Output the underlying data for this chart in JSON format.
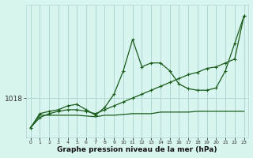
{
  "title": "Graphe pression niveau de la mer (hPa)",
  "bg_color": "#d8f5f0",
  "line_color": "#1a5c1a",
  "grid_color": "#b0d8d0",
  "xlim": [
    -0.5,
    23.5
  ],
  "ylim": [
    1013.0,
    1030.0
  ],
  "ytick_val": 1018,
  "hours": [
    0,
    1,
    2,
    3,
    4,
    5,
    6,
    7,
    8,
    9,
    10,
    11,
    12,
    13,
    14,
    15,
    16,
    17,
    18,
    19,
    20,
    21,
    22,
    23
  ],
  "series_main": [
    1014.2,
    1016.0,
    1016.3,
    1016.5,
    1017.0,
    1017.2,
    1016.5,
    1015.8,
    1016.8,
    1018.5,
    1021.5,
    1025.5,
    1022.0,
    1022.5,
    1022.5,
    1021.5,
    1019.8,
    1019.2,
    1019.0,
    1019.0,
    1019.3,
    1021.5,
    1025.0,
    1028.5
  ],
  "series_trend": [
    1014.2,
    1015.5,
    1016.0,
    1016.3,
    1016.5,
    1016.5,
    1016.3,
    1016.0,
    1016.5,
    1017.0,
    1017.5,
    1018.0,
    1018.5,
    1019.0,
    1019.5,
    1020.0,
    1020.5,
    1021.0,
    1021.3,
    1021.8,
    1022.0,
    1022.5,
    1023.0,
    1028.5
  ],
  "series_flat": [
    1014.2,
    1015.8,
    1015.8,
    1015.8,
    1015.8,
    1015.8,
    1015.7,
    1015.6,
    1015.8,
    1015.8,
    1015.9,
    1016.0,
    1016.0,
    1016.0,
    1016.2,
    1016.2,
    1016.2,
    1016.2,
    1016.3,
    1016.3,
    1016.3,
    1016.3,
    1016.3,
    1016.3
  ],
  "xtick_labels": [
    "0",
    "1",
    "2",
    "3",
    "4",
    "5",
    "6",
    "7",
    "8",
    "9",
    "10",
    "11",
    "12",
    "13",
    "14",
    "15",
    "16",
    "17",
    "18",
    "19",
    "20",
    "21",
    "22",
    "23"
  ]
}
